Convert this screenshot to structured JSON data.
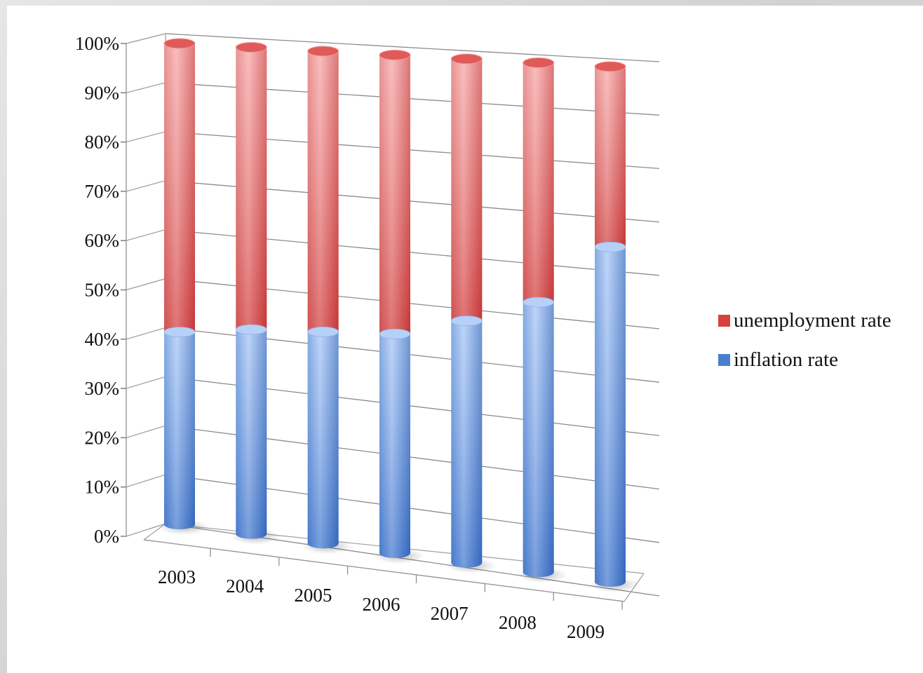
{
  "chart_data": {
    "type": "bar",
    "stacked": "percent",
    "categories": [
      "2003",
      "2004",
      "2005",
      "2006",
      "2007",
      "2008",
      "2009"
    ],
    "series": [
      {
        "name": "inflation rate",
        "color": "#4a7fd0",
        "values": [
          40,
          42,
          43,
          44,
          48,
          53,
          65
        ]
      },
      {
        "name": "unemployment rate",
        "color": "#d84040",
        "values": [
          60,
          58,
          57,
          56,
          52,
          47,
          35
        ]
      }
    ],
    "y_ticks": [
      "0%",
      "10%",
      "20%",
      "30%",
      "40%",
      "50%",
      "60%",
      "70%",
      "80%",
      "90%",
      "100%"
    ],
    "ylim": [
      0,
      100
    ],
    "grid": true,
    "legend_position": "right",
    "legend_order": [
      "unemployment rate",
      "inflation rate"
    ],
    "style": "3d-cylinder"
  }
}
